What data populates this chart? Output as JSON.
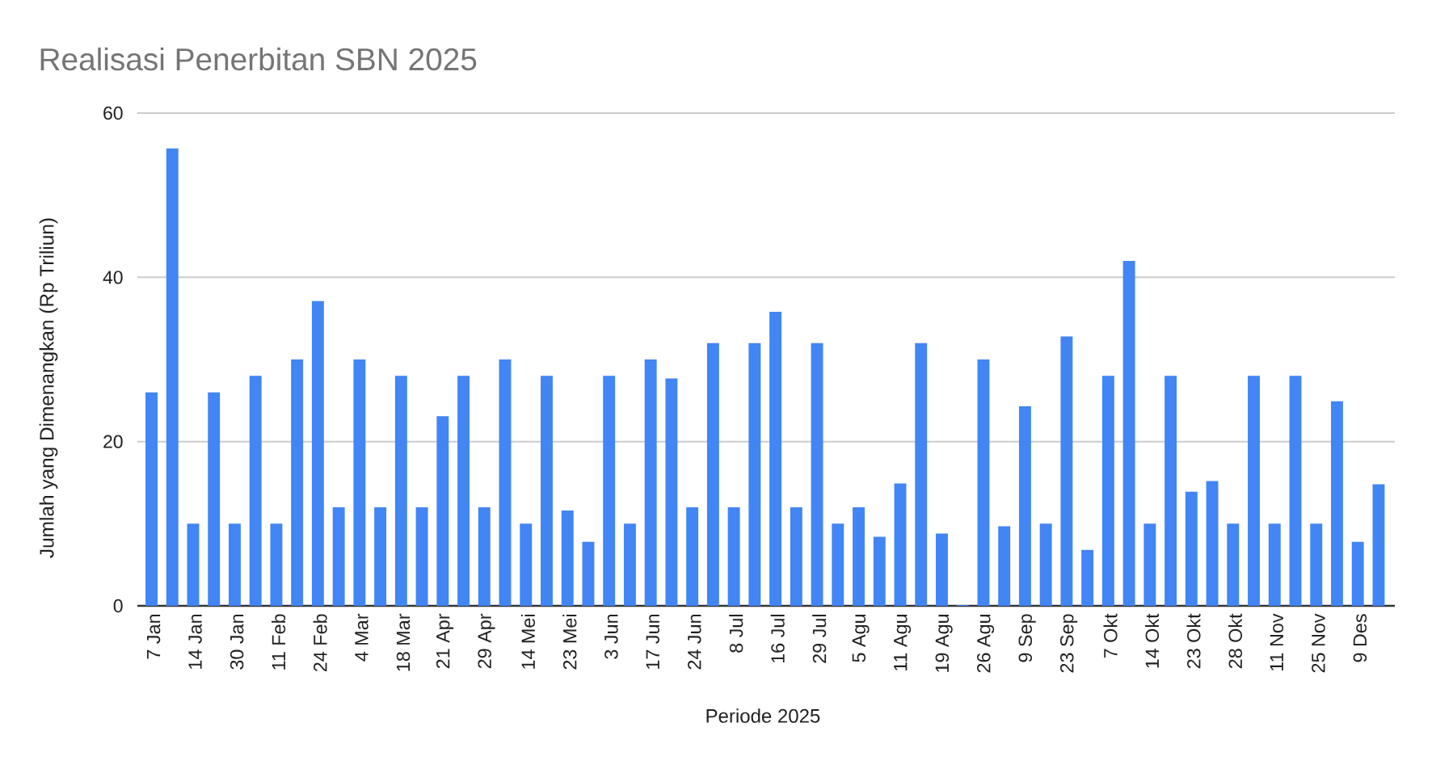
{
  "chart_data": {
    "type": "bar",
    "title": "Realisasi Penerbitan SBN 2025",
    "xlabel": "Periode 2025",
    "ylabel": "Jumlah yang Dimenangkan (Rp Triliun)",
    "categories": [
      "7 Jan",
      null,
      "14 Jan",
      null,
      "30 Jan",
      null,
      "11 Feb",
      null,
      "24 Feb",
      null,
      "4 Mar",
      null,
      "18 Mar",
      null,
      "21 Apr",
      null,
      "29 Apr",
      null,
      "14 Mei",
      null,
      "23 Mei",
      null,
      "3 Jun",
      null,
      "17 Jun",
      null,
      "24 Jun",
      null,
      "8 Jul",
      null,
      "16 Jul",
      null,
      "29 Jul",
      null,
      "5 Agu",
      null,
      "11 Agu",
      null,
      "19 Agu",
      null,
      "26 Agu",
      null,
      "9 Sep",
      null,
      "23 Sep",
      null,
      "7 Okt",
      null,
      "14 Okt",
      null,
      "23 Okt",
      null,
      "28 Okt",
      null,
      "11 Nov",
      null,
      "25 Nov",
      null,
      "9 Des",
      null
    ],
    "values": [
      26,
      55.7,
      10,
      26,
      10,
      28,
      10,
      30,
      37.1,
      12,
      30,
      12,
      28,
      12,
      23.1,
      28,
      12,
      30,
      10,
      28,
      11.6,
      7.8,
      28,
      10,
      30,
      27.7,
      12,
      32,
      12,
      32,
      35.8,
      12,
      32,
      10,
      12,
      8.4,
      14.9,
      32,
      8.8,
      0.1,
      30,
      9.7,
      24.3,
      10,
      32.8,
      6.8,
      28,
      42,
      10,
      28,
      13.9,
      15.2,
      10,
      28,
      10,
      28,
      10,
      24.9,
      7.8,
      14.8
    ],
    "color": "#4285f4",
    "ylim": [
      0,
      60
    ],
    "yticks": [
      0,
      20,
      40,
      60
    ],
    "grid": "y"
  }
}
